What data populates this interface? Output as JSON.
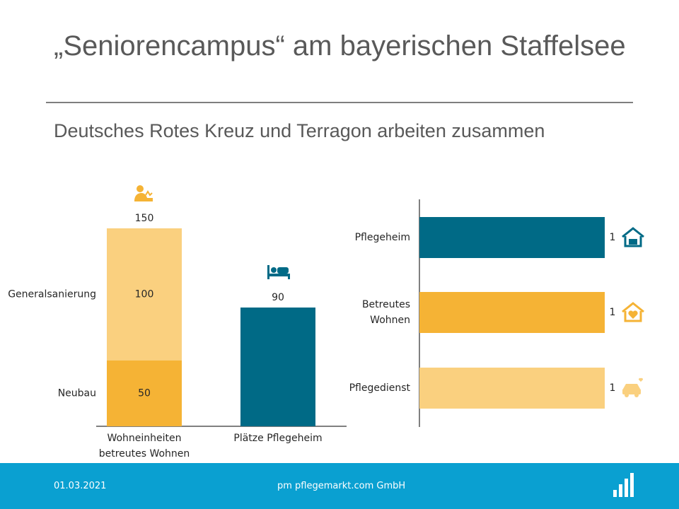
{
  "slide": {
    "title": "„Seniorencampus“ am bayerischen Staffelsee",
    "subtitle": "Deutsches Rotes Kreuz und Terragon arbeiten zusammen"
  },
  "footer": {
    "date": "01.03.2021",
    "company": "pm pflegemarkt.com GmbH"
  },
  "colors": {
    "teal": "#006a86",
    "orange": "#f5b335",
    "light_orange": "#fad07f",
    "footer_blue": "#0aa0d1"
  },
  "chart_data": [
    {
      "type": "bar",
      "stacked": true,
      "categories": [
        "Wohneinheiten betreutes Wohnen",
        "Plätze Pflegeheim"
      ],
      "category_lines": [
        [
          "Wohneinheiten",
          "betreutes Wohnen"
        ],
        [
          "Plätze Pflegeheim"
        ]
      ],
      "series": [
        {
          "name": "Neubau",
          "values": [
            50,
            0
          ],
          "color": "#f5b335"
        },
        {
          "name": "Generalsanierung",
          "values": [
            100,
            0
          ],
          "color": "#fad07f"
        },
        {
          "name": "",
          "values": [
            0,
            90
          ],
          "color": "#006a86"
        }
      ],
      "totals": [
        150,
        90
      ],
      "icons": [
        "senior-care-icon",
        "bed-icon"
      ],
      "ylim": [
        0,
        150
      ]
    },
    {
      "type": "bar",
      "orientation": "horizontal",
      "categories": [
        "Pflegeheim",
        "Betreutes Wohnen",
        "Pflegedienst"
      ],
      "category_lines": [
        [
          "Pflegeheim"
        ],
        [
          "Betreutes",
          "Wohnen"
        ],
        [
          "Pflegedienst"
        ]
      ],
      "values": [
        1,
        1,
        1
      ],
      "colors": [
        "#006a86",
        "#f5b335",
        "#fad07f"
      ],
      "icons": [
        "house-care-icon",
        "house-heart-icon",
        "car-care-icon"
      ],
      "xlim": [
        0,
        1
      ]
    }
  ]
}
